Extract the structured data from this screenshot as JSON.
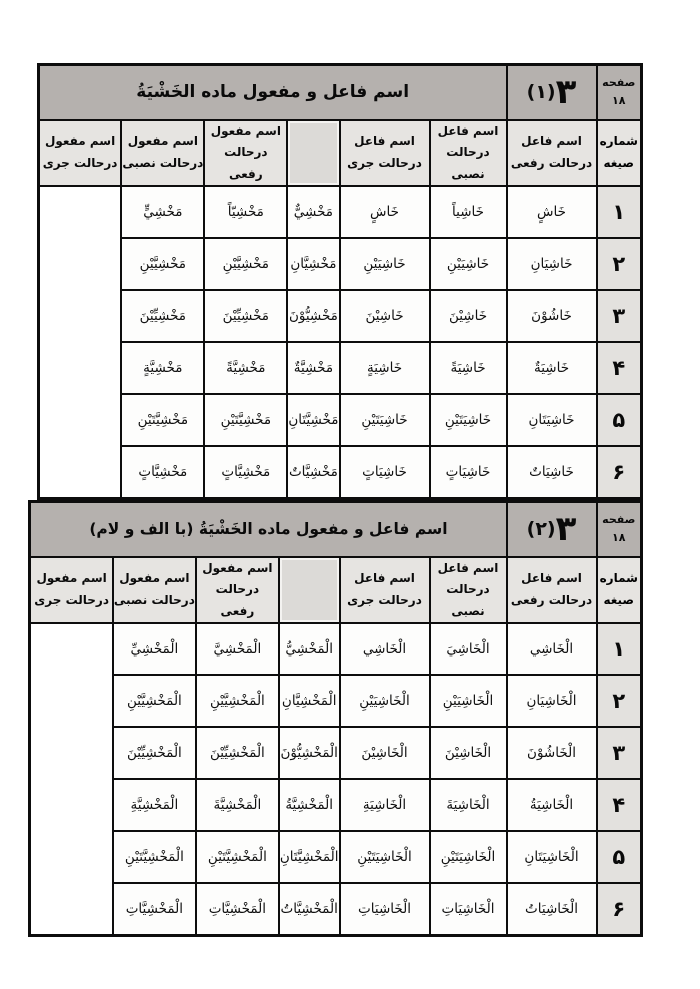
{
  "page": {
    "background": "#ffffff",
    "band_gray": "#b5b1ae",
    "header_gray": "#e6e4e1",
    "num_gray": "#e3e1de",
    "strip_gray": "#dcdad7",
    "border_black": "#0d0d0d"
  },
  "tables": [
    {
      "title": "اسم فاعل و مفعول ماده الخَشْيَةُ",
      "num_main": "۳",
      "num_paren": "(۱)",
      "page_word": "صفحه",
      "page_num": "۱۸",
      "shomareh_line1": "شماره",
      "shomareh_line2": "صیغه",
      "headers": {
        "fa3el": "اسم فاعل",
        "maf3ul": "اسم مفعول",
        "raf3i": "درحالت رفعی",
        "nasbi": "درحالت نصبی",
        "jari": "درحالت جری"
      },
      "rows": [
        {
          "num": "۱",
          "fa3el_raf3i": "خَاشٍ",
          "fa3el_nasbi": "خَاشِياً",
          "fa3el_jari": "خَاشٍ",
          "maf3ul_raf3i": "مَخْشِيٌّ",
          "maf3ul_nasbi": "مَخْشِيّاً",
          "maf3ul_jari": "مَخْشِيٍّ"
        },
        {
          "num": "۲",
          "fa3el_raf3i": "خَاشِيَانِ",
          "fa3el_nasbi": "خَاشِيَيْنِ",
          "fa3el_jari": "خَاشِيَيْنِ",
          "maf3ul_raf3i": "مَخْشِيَّانِ",
          "maf3ul_nasbi": "مَخْشِيَّيْنِ",
          "maf3ul_jari": "مَخْشِيَّيْنِ"
        },
        {
          "num": "۳",
          "fa3el_raf3i": "خَاشُوْنَ",
          "fa3el_nasbi": "خَاشِيْنَ",
          "fa3el_jari": "خَاشِيْنَ",
          "maf3ul_raf3i": "مَخْشِيُّوْنَ",
          "maf3ul_nasbi": "مَخْشِيِّيْنَ",
          "maf3ul_jari": "مَخْشِيِّيْنَ"
        },
        {
          "num": "۴",
          "fa3el_raf3i": "خَاشِيَةٌ",
          "fa3el_nasbi": "خَاشِيَةً",
          "fa3el_jari": "خَاشِيَةٍ",
          "maf3ul_raf3i": "مَخْشِيَّةٌ",
          "maf3ul_nasbi": "مَخْشِيَّةً",
          "maf3ul_jari": "مَخْشِيَّةٍ"
        },
        {
          "num": "۵",
          "fa3el_raf3i": "خَاشِيَتَانِ",
          "fa3el_nasbi": "خَاشِيَتَيْنِ",
          "fa3el_jari": "خَاشِيَتَيْنِ",
          "maf3ul_raf3i": "مَخْشِيَّتَانِ",
          "maf3ul_nasbi": "مَخْشِيَّتَيْنِ",
          "maf3ul_jari": "مَخْشِيَّتَيْنِ"
        },
        {
          "num": "۶",
          "fa3el_raf3i": "خَاشِيَاتٌ",
          "fa3el_nasbi": "خَاشِيَاتٍ",
          "fa3el_jari": "خَاشِيَاتٍ",
          "maf3ul_raf3i": "مَخْشِيَّاتٌ",
          "maf3ul_nasbi": "مَخْشِيَّاتٍ",
          "maf3ul_jari": "مَخْشِيَّاتٍ"
        }
      ]
    },
    {
      "title": "اسم فاعل و مفعول ماده الخَشْيَةُ (با الف و لام)",
      "num_main": "۳",
      "num_paren": "(۲)",
      "page_word": "صفحه",
      "page_num": "۱۸",
      "shomareh_line1": "شماره",
      "shomareh_line2": "صیغه",
      "headers": {
        "fa3el": "اسم فاعل",
        "maf3ul": "اسم مفعول",
        "raf3i": "درحالت رفعی",
        "nasbi": "درحالت نصبی",
        "jari": "درحالت جری"
      },
      "rows": [
        {
          "num": "۱",
          "fa3el_raf3i": "الْخَاشِي",
          "fa3el_nasbi": "الْخَاشِيَ",
          "fa3el_jari": "الْخَاشِي",
          "maf3ul_raf3i": "الْمَخْشِيُّ",
          "maf3ul_nasbi": "الْمَخْشِيَّ",
          "maf3ul_jari": "الْمَخْشِيِّ"
        },
        {
          "num": "۲",
          "fa3el_raf3i": "الْخَاشِيَانِ",
          "fa3el_nasbi": "الْخَاشِيَيْنِ",
          "fa3el_jari": "الْخَاشِيَيْنِ",
          "maf3ul_raf3i": "الْمَخْشِيَّانِ",
          "maf3ul_nasbi": "الْمَخْشِيَّيْنِ",
          "maf3ul_jari": "الْمَخْشِيَّيْنِ"
        },
        {
          "num": "۳",
          "fa3el_raf3i": "الْخَاشُوْنَ",
          "fa3el_nasbi": "الْخَاشِيْنَ",
          "fa3el_jari": "الْخَاشِيْنَ",
          "maf3ul_raf3i": "الْمَخْشِيُّوْنَ",
          "maf3ul_nasbi": "الْمَخْشِيِّيْنَ",
          "maf3ul_jari": "الْمَخْشِيِّيْنَ"
        },
        {
          "num": "۴",
          "fa3el_raf3i": "الْخَاشِيَةُ",
          "fa3el_nasbi": "الْخَاشِيَةَ",
          "fa3el_jari": "الْخَاشِيَةِ",
          "maf3ul_raf3i": "الْمَخْشِيَّةُ",
          "maf3ul_nasbi": "الْمَخْشِيَّةَ",
          "maf3ul_jari": "الْمَخْشِيَّةِ"
        },
        {
          "num": "۵",
          "fa3el_raf3i": "الْخَاشِيَتَانِ",
          "fa3el_nasbi": "الْخَاشِيَتَيْنِ",
          "fa3el_jari": "الْخَاشِيَتَيْنِ",
          "maf3ul_raf3i": "الْمَخْشِيَّتَانِ",
          "maf3ul_nasbi": "الْمَخْشِيَّتَيْنِ",
          "maf3ul_jari": "الْمَخْشِيَّتَيْنِ"
        },
        {
          "num": "۶",
          "fa3el_raf3i": "الْخَاشِيَاتُ",
          "fa3el_nasbi": "الْخَاشِيَاتِ",
          "fa3el_jari": "الْخَاشِيَاتِ",
          "maf3ul_raf3i": "الْمَخْشِيَّاتُ",
          "maf3ul_nasbi": "الْمَخْشِيَّاتِ",
          "maf3ul_jari": "الْمَخْشِيَّاتِ"
        }
      ]
    }
  ]
}
